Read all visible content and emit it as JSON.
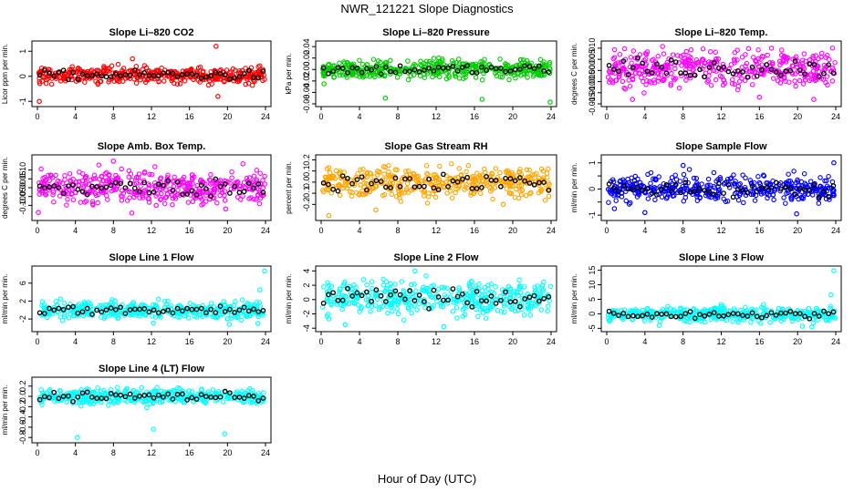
{
  "figure": {
    "title": "NWR_121221  Slope Diagnostics",
    "xlabel": "Hour of Day (UTC)"
  },
  "chart_data": [
    {
      "type": "scatter",
      "title": "Slope Li–820 CO2",
      "ylabel": "Licor ppm per min.",
      "xlim": [
        0,
        24
      ],
      "xticks": [
        0,
        4,
        8,
        12,
        16,
        20,
        24
      ],
      "ylim": [
        -1.1,
        1.3
      ],
      "yticks": [
        -1,
        0,
        1
      ],
      "ytick_labels": [
        "-1",
        "0",
        "1"
      ],
      "color": "#ff0000",
      "spread": 0.16,
      "mean_y": 0.05,
      "outliers": [
        [
          18.8,
          1.2
        ],
        [
          0.2,
          -1.0
        ],
        [
          19,
          -0.8
        ],
        [
          10,
          0.7
        ]
      ]
    },
    {
      "type": "scatter",
      "title": "Slope Li–820 Pressure",
      "ylabel": "kPa per min.",
      "xlim": [
        0,
        24
      ],
      "xticks": [
        0,
        4,
        8,
        12,
        16,
        20,
        24
      ],
      "ylim": [
        -0.06,
        0.045
      ],
      "yticks": [
        -0.06,
        -0.04,
        -0.02,
        0,
        0.02,
        0.04
      ],
      "ytick_labels": [
        "-0.06",
        "-0.04",
        "-0.02",
        "0.00",
        "0.02",
        "0.04"
      ],
      "color": "#00cc00",
      "spread": 0.008,
      "mean_y": 0.0,
      "outliers": [
        [
          6.7,
          -0.05
        ],
        [
          16.8,
          -0.052
        ],
        [
          23.9,
          -0.057
        ],
        [
          0.3,
          -0.025
        ]
      ]
    },
    {
      "type": "scatter",
      "title": "Slope Li–820 Temp.",
      "ylabel": "degrees C per min.",
      "xlim": [
        0,
        24
      ],
      "xticks": [
        0,
        4,
        8,
        12,
        16,
        20,
        24
      ],
      "ylim": [
        -0.015,
        0.012
      ],
      "yticks": [
        -0.015,
        -0.01,
        -0.005,
        0,
        0.005,
        0.01
      ],
      "ytick_labels": [
        "-0.015",
        "-0.010",
        "-0.005",
        "0.000",
        "0.005",
        "0.010"
      ],
      "color": "#ff00ff",
      "spread": 0.004,
      "mean_y": 0.001,
      "outliers": [
        [
          21.7,
          -0.013
        ],
        [
          2.7,
          -0.013
        ],
        [
          16,
          -0.012
        ]
      ]
    },
    {
      "type": "scatter",
      "title": "Slope Amb. Box Temp.",
      "ylabel": "degrees C per min.",
      "xlim": [
        0,
        24
      ],
      "xticks": [
        0,
        4,
        8,
        12,
        16,
        20,
        24
      ],
      "ylim": [
        -0.17,
        0.17
      ],
      "yticks": [
        -0.1,
        -0.05,
        0,
        0.05,
        0.1
      ],
      "ytick_labels": [
        "-0.10",
        "-0.05",
        "0.00",
        "0.05",
        "0.10"
      ],
      "color": "#ff00ff",
      "spread": 0.045,
      "mean_y": 0.0,
      "outliers": [
        [
          0.1,
          -0.14
        ],
        [
          12.5,
          -0.1
        ],
        [
          8,
          0.15
        ],
        [
          19.8,
          -0.12
        ]
      ]
    },
    {
      "type": "scatter",
      "title": "Slope Gas Stream RH",
      "ylabel": "percent per min.",
      "xlim": [
        0,
        24
      ],
      "xticks": [
        0,
        4,
        8,
        12,
        16,
        20,
        24
      ],
      "ylim": [
        -0.32,
        0.22
      ],
      "yticks": [
        -0.2,
        -0.1,
        0,
        0.1,
        0.2
      ],
      "ytick_labels": [
        "-0.2",
        "-0.1",
        "0.0",
        "0.1",
        "0.2"
      ],
      "color": "#ffa500",
      "spread": 0.07,
      "mean_y": 0.0,
      "outliers": [
        [
          0.8,
          -0.3
        ],
        [
          5.7,
          -0.25
        ],
        [
          19,
          -0.2
        ]
      ]
    },
    {
      "type": "scatter",
      "title": "Slope Sample Flow",
      "ylabel": "ml/min per min.",
      "xlim": [
        0,
        24
      ],
      "xticks": [
        0,
        4,
        8,
        12,
        16,
        20,
        24
      ],
      "ylim": [
        -1.1,
        1.2
      ],
      "yticks": [
        -1,
        -0.5,
        0,
        0.5,
        1
      ],
      "ytick_labels": [
        "-1",
        "",
        "0",
        "",
        "1"
      ],
      "color": "#0000ff",
      "spread": 0.25,
      "mean_y": 0.0,
      "outliers": [
        [
          4,
          -0.9
        ],
        [
          0.8,
          -0.75
        ],
        [
          19.9,
          -0.95
        ],
        [
          23.8,
          1.0
        ],
        [
          8,
          0.9
        ]
      ]
    },
    {
      "type": "scatter",
      "title": "Slope Line 1 Flow",
      "ylabel": "ml/min per min.",
      "xlim": [
        0,
        24
      ],
      "xticks": [
        0,
        4,
        8,
        12,
        16,
        20,
        24
      ],
      "ylim": [
        -4.2,
        9.2
      ],
      "yticks": [
        -2,
        2,
        6
      ],
      "ytick_labels": [
        "-2",
        "2",
        "6"
      ],
      "color": "#00ffff",
      "spread": 0.9,
      "mean_y": 0.0,
      "outliers": [
        [
          23.9,
          8.7
        ],
        [
          23.4,
          4.5
        ],
        [
          20.2,
          -3.2
        ],
        [
          23.2,
          -3.0
        ],
        [
          12.2,
          -2.9
        ]
      ]
    },
    {
      "type": "scatter",
      "title": "Slope Line 2 Flow",
      "ylabel": "ml/min per min.",
      "xlim": [
        0,
        24
      ],
      "xticks": [
        0,
        4,
        8,
        12,
        16,
        20,
        24
      ],
      "ylim": [
        -4.1,
        4.3
      ],
      "yticks": [
        -4,
        -2,
        0,
        2,
        4
      ],
      "ytick_labels": [
        "-4",
        "-2",
        "0",
        "2",
        "4"
      ],
      "color": "#00ffff",
      "spread": 1.1,
      "mean_y": 0.3,
      "outliers": [
        [
          12.8,
          -3.8
        ],
        [
          2.5,
          -3.5
        ],
        [
          9.8,
          4.0
        ],
        [
          0.8,
          -2.7
        ]
      ]
    },
    {
      "type": "scatter",
      "title": "Slope Line 3 Flow",
      "ylabel": "ml/min per min.",
      "xlim": [
        0,
        24
      ],
      "xticks": [
        0,
        4,
        8,
        12,
        16,
        20,
        24
      ],
      "ylim": [
        -5.2,
        15.5
      ],
      "yticks": [
        -5,
        0,
        5,
        10,
        15
      ],
      "ytick_labels": [
        "-5",
        "0",
        "5",
        "10",
        "15"
      ],
      "color": "#00ffff",
      "spread": 1.2,
      "mean_y": -0.2,
      "outliers": [
        [
          23.8,
          14.8
        ],
        [
          23.5,
          6.5
        ],
        [
          21.5,
          -4.5
        ],
        [
          20.5,
          -4.3
        ],
        [
          5.5,
          -4.0
        ]
      ]
    },
    {
      "type": "scatter",
      "title": "Slope Line 4 (LT) Flow",
      "ylabel": "ml/min per min.",
      "xlim": [
        0,
        24
      ],
      "xticks": [
        0,
        4,
        8,
        12,
        16,
        20,
        24
      ],
      "ylim": [
        -0.85,
        0.32
      ],
      "yticks": [
        -0.8,
        -0.6,
        -0.4,
        -0.2,
        0,
        0.2
      ],
      "ytick_labels": [
        "-0.8",
        "-0.6",
        "-0.4",
        "-0.2",
        "0.0",
        "0.2"
      ],
      "color": "#00ffff",
      "spread": 0.07,
      "mean_y": 0.0,
      "outliers": [
        [
          4.2,
          -0.8
        ],
        [
          12.2,
          -0.64
        ],
        [
          19.7,
          -0.73
        ],
        [
          11.5,
          -0.22
        ]
      ]
    }
  ]
}
